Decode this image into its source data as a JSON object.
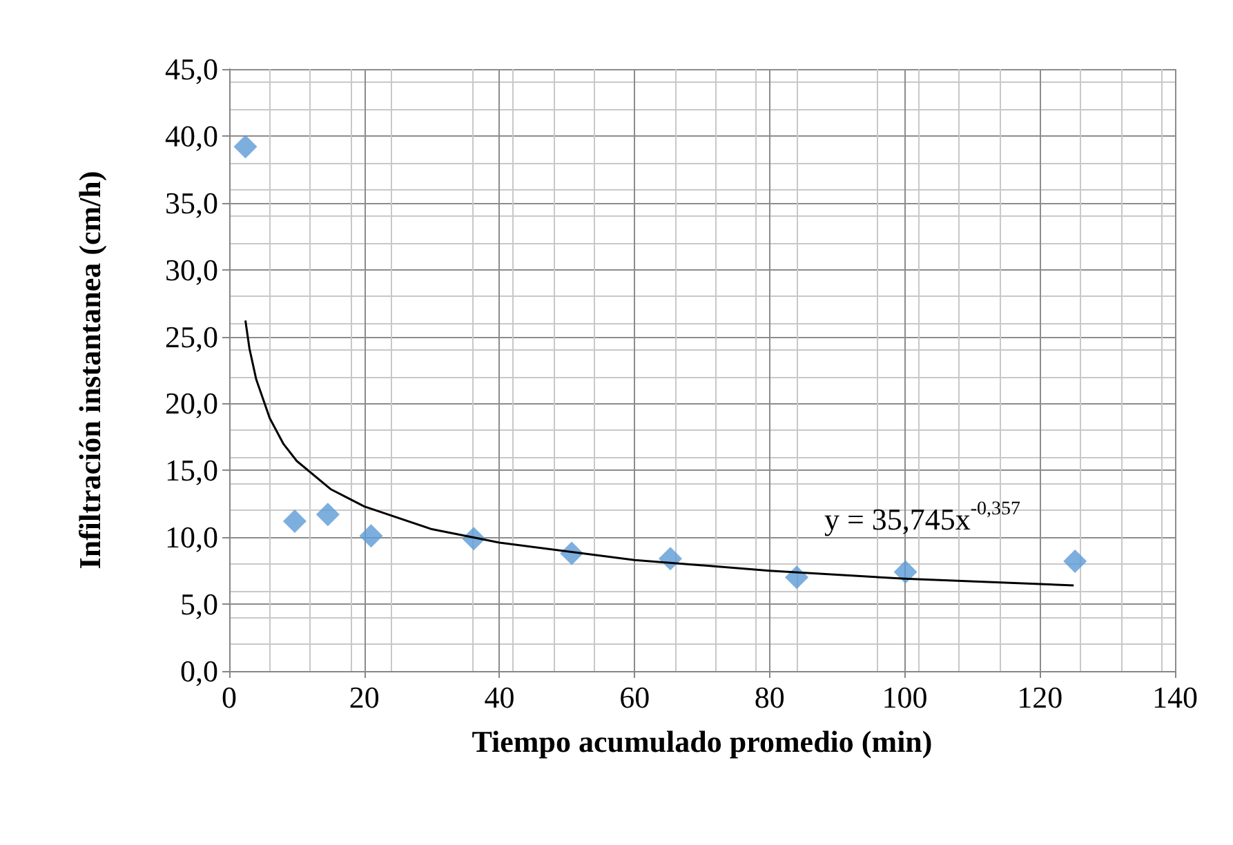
{
  "chart_data": {
    "type": "scatter",
    "xlabel": "Tiempo acumulado promedio (min)",
    "ylabel": "Infiltración instantanea (cm/h)",
    "xlim": [
      0,
      140
    ],
    "xticks": [
      0,
      20,
      40,
      60,
      80,
      100,
      120,
      140
    ],
    "ylim": [
      0,
      45
    ],
    "yticks": [
      {
        "value": 0,
        "label": "0,0"
      },
      {
        "value": 5,
        "label": "5,0"
      },
      {
        "value": 10,
        "label": "10,0"
      },
      {
        "value": 15,
        "label": "15,0"
      },
      {
        "value": 20,
        "label": "20,0"
      },
      {
        "value": 25,
        "label": "25,0"
      },
      {
        "value": 30,
        "label": "30,0"
      },
      {
        "value": 35,
        "label": "35,0"
      },
      {
        "value": 40,
        "label": "40,0"
      },
      {
        "value": 45,
        "label": "45,0"
      }
    ],
    "grid": true,
    "marker": "diamond",
    "series": [
      {
        "color": "#5b9bd5",
        "x": [
          2.4,
          9.7,
          14.6,
          21.0,
          36.2,
          50.7,
          65.3,
          84.0,
          100.1,
          125.2
        ],
        "values": [
          39.2,
          11.2,
          11.7,
          10.1,
          9.9,
          8.8,
          8.4,
          7.0,
          7.4,
          8.2
        ]
      },
      {
        "type": "line",
        "color": "#000000",
        "marker": "none",
        "x": [
          2.4,
          3,
          4,
          6,
          8,
          10,
          15,
          20,
          30,
          40,
          60,
          80,
          100,
          125
        ],
        "values": [
          26.2,
          24.1,
          21.8,
          18.9,
          17.0,
          15.7,
          13.6,
          12.3,
          10.6,
          9.6,
          8.3,
          7.5,
          6.9,
          6.4
        ]
      }
    ],
    "annotations": [
      "y = 35,745x$^{-0,357}$"
    ]
  }
}
